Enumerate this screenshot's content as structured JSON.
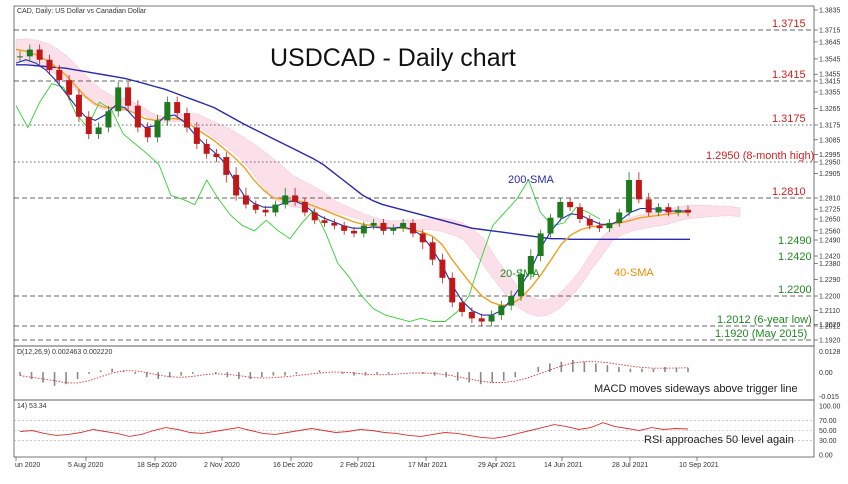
{
  "header": {
    "main_label": "CAD, Daily:  US Dollar vs Canadian Dollar",
    "title": "USDCAD - Daily chart"
  },
  "macd_panel": {
    "label": "D(12,26,9) 0.002463 0.002220",
    "note": "MACD moves sideways above trigger line"
  },
  "rsi_panel": {
    "label": "14) 53.34",
    "note": "RSI approaches 50 level again"
  },
  "colors": {
    "candle_up": "#1e7a1e",
    "candle_down": "#c01818",
    "sma20": "#1530c0",
    "sma40": "#f0a020",
    "sma200": "#2828b0",
    "chikou": "#30d030",
    "cloud": "#f4a6c4",
    "level_text": "#d42020",
    "sma200_text": "#2828b0",
    "sma40_text": "#f08c00",
    "sma20_text": "#1e8a1e",
    "level_green_text": "#1e8a1e"
  },
  "chart_data": {
    "type": "candlestick",
    "x_ticks": [
      "un 2020",
      "5 Aug 2020",
      "18 Sep 2020",
      "2 Nov 2020",
      "16 Dec 2020",
      "2 Feb 2021",
      "17 Mar 2021",
      "29 Apr 2021",
      "14 Jun 2021",
      "28 Jul 2021",
      "10 Sep 2021"
    ],
    "y_ticks": [
      "1.3835",
      "1.3715",
      "1.3645",
      "1.3545",
      "1.3455",
      "1.3415",
      "1.3355",
      "1.3265",
      "1.3175",
      "1.3085",
      "1.2995",
      "1.2950",
      "1.2905",
      "1.2810",
      "1.2725",
      "1.2650",
      "1.2560",
      "1.2490",
      "1.2420",
      "1.2380",
      "1.2290",
      "1.2200",
      "1.2110",
      "1.2020",
      "1.2012",
      "1.1920"
    ],
    "ylim": [
      1.192,
      1.3835
    ],
    "levels": [
      {
        "value": 1.3715,
        "label": "1.3715",
        "style": "dashed"
      },
      {
        "value": 1.3415,
        "label": "1.3415",
        "style": "dashed"
      },
      {
        "value": 1.3175,
        "label": "1.3175",
        "style": "dotted"
      },
      {
        "value": 1.295,
        "label": "1.2950 (8-month high)",
        "style": "dotted"
      },
      {
        "value": 1.281,
        "label": "1.2810",
        "style": "dashed"
      },
      {
        "value": 1.249,
        "label": "1.2490",
        "style": "none"
      },
      {
        "value": 1.242,
        "label": "1.2420",
        "style": "none"
      },
      {
        "value": 1.22,
        "label": "1.2200",
        "style": "dashed"
      },
      {
        "value": 1.2012,
        "label": "1.2012 (6-year low)",
        "style": "dashed"
      },
      {
        "value": 1.192,
        "label": "1.1920 (May 2015)",
        "style": "dashed"
      }
    ],
    "annotations": {
      "sma200": "200-SMA",
      "sma40": "40-SMA",
      "sma20": "20-SMA"
    },
    "close_path": [
      1.356,
      1.36,
      1.354,
      1.348,
      1.342,
      1.334,
      1.322,
      1.312,
      1.316,
      1.325,
      1.338,
      1.328,
      1.316,
      1.31,
      1.32,
      1.33,
      1.324,
      1.316,
      1.306,
      1.3,
      1.298,
      1.29,
      1.282,
      1.276,
      1.272,
      1.27,
      1.276,
      1.282,
      1.278,
      1.27,
      1.264,
      1.262,
      1.26,
      1.256,
      1.254,
      1.26,
      1.262,
      1.256,
      1.258,
      1.262,
      1.254,
      1.248,
      1.24,
      1.23,
      1.216,
      1.21,
      1.206,
      1.204,
      1.208,
      1.214,
      1.22,
      1.232,
      1.242,
      1.254,
      1.266,
      1.278,
      1.274,
      1.265,
      1.26,
      1.258,
      1.262,
      1.27,
      1.288,
      1.28,
      1.27,
      1.274,
      1.27,
      1.272,
      1.27
    ],
    "sma20_path": [
      1.352,
      1.354,
      1.352,
      1.348,
      1.342,
      1.335,
      1.328,
      1.322,
      1.32,
      1.323,
      1.328,
      1.327,
      1.321,
      1.316,
      1.317,
      1.322,
      1.323,
      1.319,
      1.312,
      1.306,
      1.301,
      1.295,
      1.288,
      1.282,
      1.277,
      1.274,
      1.274,
      1.277,
      1.279,
      1.276,
      1.27,
      1.266,
      1.263,
      1.26,
      1.258,
      1.258,
      1.259,
      1.258,
      1.258,
      1.259,
      1.257,
      1.252,
      1.245,
      1.237,
      1.226,
      1.217,
      1.211,
      1.208,
      1.208,
      1.211,
      1.218,
      1.226,
      1.235,
      1.246,
      1.256,
      1.265,
      1.269,
      1.268,
      1.264,
      1.261,
      1.261,
      1.264,
      1.27,
      1.273,
      1.273,
      1.272,
      1.271,
      1.271,
      1.271
    ],
    "sma40_path": [
      1.36,
      1.359,
      1.357,
      1.354,
      1.35,
      1.345,
      1.339,
      1.333,
      1.329,
      1.327,
      1.327,
      1.326,
      1.324,
      1.321,
      1.32,
      1.321,
      1.321,
      1.32,
      1.316,
      1.312,
      1.308,
      1.303,
      1.298,
      1.293,
      1.288,
      1.284,
      1.281,
      1.28,
      1.279,
      1.278,
      1.275,
      1.272,
      1.269,
      1.266,
      1.263,
      1.261,
      1.26,
      1.259,
      1.258,
      1.258,
      1.257,
      1.255,
      1.252,
      1.247,
      1.24,
      1.233,
      1.226,
      1.22,
      1.216,
      1.214,
      1.215,
      1.219,
      1.225,
      1.232,
      1.24,
      1.247,
      1.253,
      1.257,
      1.259,
      1.26,
      1.261,
      1.262,
      1.264,
      1.266,
      1.267,
      1.268,
      1.269,
      1.27,
      1.27
    ],
    "sma200_path": [
      1.351,
      1.351,
      1.3505,
      1.35,
      1.3495,
      1.349,
      1.348,
      1.347,
      1.346,
      1.345,
      1.344,
      1.343,
      1.3415,
      1.34,
      1.3385,
      1.337,
      1.335,
      1.333,
      1.331,
      1.329,
      1.327,
      1.324,
      1.321,
      1.318,
      1.315,
      1.312,
      1.309,
      1.306,
      1.303,
      1.3,
      1.297,
      1.294,
      1.291,
      1.288,
      1.285,
      1.282,
      1.279,
      1.276,
      1.274,
      1.272,
      1.27,
      1.268,
      1.266,
      1.264,
      1.262,
      1.26,
      1.258,
      1.257,
      1.256,
      1.255,
      1.254,
      1.253,
      1.252,
      1.251,
      1.25,
      1.25,
      1.2495,
      1.2495,
      1.2495,
      1.2495,
      1.2495,
      1.2495,
      1.2495,
      1.2495,
      1.2495,
      1.2495,
      1.2495,
      1.2495,
      1.2495
    ],
    "chikou_path": [
      1.328,
      1.316,
      1.33,
      1.34,
      1.338,
      1.324,
      1.316,
      1.33,
      1.326,
      1.312,
      1.306,
      1.3,
      1.294,
      1.282,
      1.28,
      1.276,
      1.288,
      1.28,
      1.268,
      1.26,
      1.256,
      1.264,
      1.256,
      1.25,
      1.262,
      1.272,
      1.254,
      1.238,
      1.23,
      1.22,
      1.212,
      1.208,
      1.206,
      1.204,
      1.206,
      1.204,
      1.204,
      1.21,
      1.22,
      1.24,
      1.26,
      1.27,
      1.28,
      1.288,
      1.27,
      1.26,
      1.262,
      1.274,
      1.27,
      1.265
    ],
    "macd": {
      "ylim": [
        -0.015,
        0.0128
      ],
      "ticks": [
        "0.0128",
        "0.00",
        "-0.015"
      ],
      "values": [
        -0.002,
        -0.004,
        -0.006,
        -0.008,
        -0.007,
        -0.004,
        -0.001,
        0.001,
        0.002,
        0.001,
        -0.001,
        -0.003,
        -0.004,
        -0.003,
        -0.002,
        -0.001,
        0.0,
        -0.001,
        -0.003,
        -0.004,
        -0.004,
        -0.003,
        -0.002,
        -0.002,
        -0.001,
        0.0,
        0.001,
        0.0,
        -0.001,
        -0.002,
        -0.002,
        -0.001,
        -0.001,
        0.0,
        0.0,
        -0.001,
        -0.002,
        -0.003,
        -0.005,
        -0.006,
        -0.007,
        -0.006,
        -0.005,
        -0.003,
        0.0,
        0.003,
        0.005,
        0.006,
        0.007,
        0.006,
        0.005,
        0.004,
        0.003,
        0.002,
        0.002,
        0.002,
        0.003,
        0.0025,
        0.0025
      ]
    },
    "rsi": {
      "ylim": [
        0,
        100
      ],
      "ticks": [
        "100.00",
        "70.00",
        "50.00",
        "30.00",
        "0.00"
      ],
      "values": [
        48,
        50,
        44,
        40,
        42,
        46,
        52,
        48,
        44,
        38,
        42,
        50,
        56,
        52,
        46,
        44,
        48,
        52,
        56,
        50,
        44,
        42,
        46,
        50,
        54,
        50,
        46,
        48,
        52,
        50,
        46,
        44,
        40,
        38,
        42,
        46,
        44,
        40,
        36,
        34,
        38,
        44,
        50,
        56,
        62,
        58,
        52,
        56,
        66,
        58,
        54,
        50,
        56,
        52,
        54,
        53
      ]
    }
  }
}
